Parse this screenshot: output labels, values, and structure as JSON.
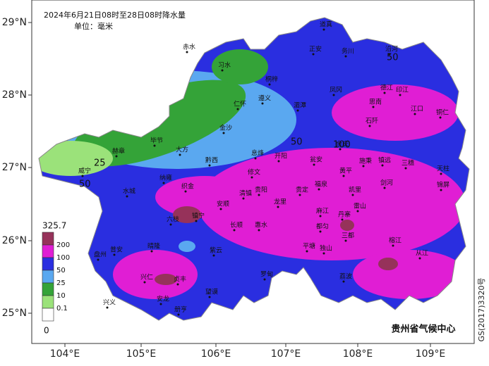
{
  "title": "2024年6月21日08时至28日08时降水量",
  "unit": "单位：毫米",
  "credit": "贵州省气候中心",
  "approval": "GS(2017)3320号",
  "latitude_ticks": [
    "29°N",
    "28°N",
    "27°N",
    "26°N",
    "25°N"
  ],
  "longitude_ticks": [
    "104°E",
    "105°E",
    "106°E",
    "107°E",
    "108°E",
    "109°E"
  ],
  "legend": {
    "max": "325.7",
    "levels": [
      "200",
      "100",
      "50",
      "25",
      "10",
      "0.1"
    ],
    "min": "0"
  },
  "contour_labels": [
    "50",
    "25",
    "50",
    "50",
    "100"
  ],
  "cities": [
    "赤水",
    "习水",
    "桐梓",
    "道真",
    "正安",
    "务川",
    "沿河",
    "德江",
    "思南",
    "凤冈",
    "湄潭",
    "遵义",
    "仁怀",
    "金沙",
    "大方",
    "毕节",
    "赫章",
    "威宁",
    "黔西",
    "织金",
    "纳雍",
    "六枝",
    "水城",
    "盘州",
    "普安",
    "晴隆",
    "兴仁",
    "兴义",
    "安龙",
    "册亨",
    "贞丰",
    "望谟",
    "紫云",
    "镇宁",
    "安顺",
    "清镇",
    "贵阳",
    "修文",
    "息烽",
    "开阳",
    "龙里",
    "贵定",
    "惠水",
    "长顺",
    "罗甸",
    "瓮安",
    "福泉",
    "麻江",
    "都匀",
    "平塘",
    "独山",
    "三都",
    "荔波",
    "凯里",
    "黄平",
    "施秉",
    "镇远",
    "三穗",
    "天柱",
    "锦屏",
    "榕江",
    "从江",
    "雷山",
    "丹寨",
    "剑河",
    "石阡",
    "铜仁",
    "江口",
    "印江",
    "余庆"
  ]
}
